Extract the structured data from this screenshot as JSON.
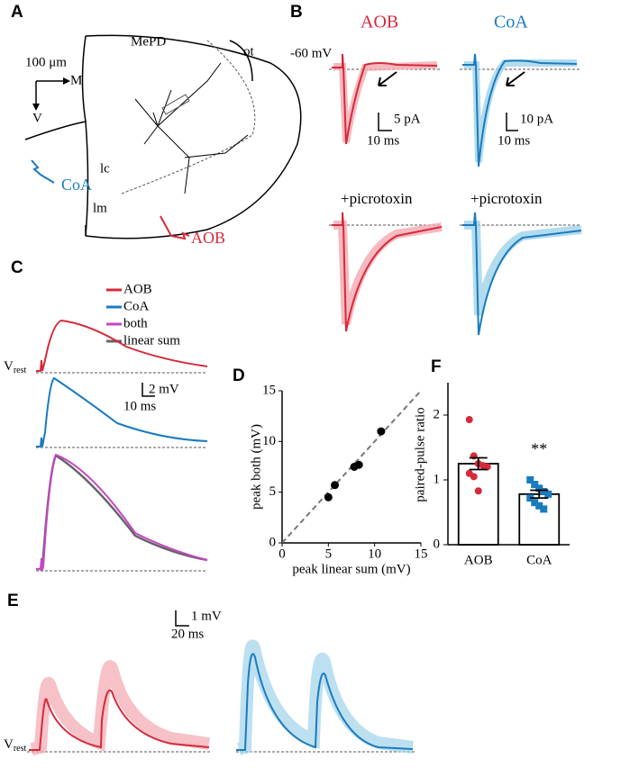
{
  "panels": {
    "A": {
      "label": "A",
      "scale": "100 μm",
      "axis_m": "M",
      "axis_v": "V",
      "region": "MePD",
      "tract": "ot",
      "layer_c": "lc",
      "layer_m": "lm",
      "input_1": "CoA",
      "input_2": "AOB"
    },
    "B": {
      "label": "B",
      "title_1": "AOB",
      "title_2": "CoA",
      "holding": "-60 mV",
      "scale_1_y": "5 pA",
      "scale_1_x": "10 ms",
      "scale_2_y": "10 pA",
      "scale_2_x": "10 ms",
      "drug_1": "+picrotoxin",
      "drug_2": "+picrotoxin"
    },
    "C": {
      "label": "C",
      "legend": [
        {
          "name": "AOB",
          "color": "#d62a3a"
        },
        {
          "name": "CoA",
          "color": "#1a7bbf"
        },
        {
          "name": "both",
          "color": "#c644c6"
        },
        {
          "name": "linear sum",
          "color": "#666666"
        }
      ],
      "vrest": "V",
      "vrest_sub": "rest",
      "scale_y": "2 mV",
      "scale_x": "10 ms"
    },
    "D": {
      "label": "D"
    },
    "E": {
      "label": "E",
      "scale_y": "1 mV",
      "scale_x": "20 ms",
      "vrest": "V",
      "vrest_sub": "rest"
    },
    "F": {
      "label": "F"
    }
  },
  "chart_data": [
    {
      "type": "scatter",
      "x_label": "peak linear sum (mV)",
      "y_label": "peak both (mV)",
      "x": [
        5,
        5.7,
        7.8,
        8.3,
        10.7
      ],
      "y": [
        4.5,
        5.7,
        7.5,
        7.7,
        11
      ],
      "xlim": [
        0,
        15
      ],
      "ylim": [
        0,
        15
      ],
      "xticks": [
        0,
        5,
        10,
        15
      ],
      "yticks": [
        0,
        5,
        10,
        15
      ],
      "color": "#000000",
      "identity_line": true
    },
    {
      "type": "bar",
      "y_label": "paired-pulse ratio",
      "categories": [
        "AOB",
        "CoA"
      ],
      "values": [
        1.25,
        0.78
      ],
      "errors": [
        0.09,
        0.06
      ],
      "points": [
        [
          1.93,
          1.37,
          1.25,
          1.22,
          1.2,
          1.1,
          1.05,
          0.83
        ],
        [
          1.0,
          0.93,
          0.87,
          0.82,
          0.78,
          0.72,
          0.65,
          0.6,
          0.55
        ]
      ],
      "point_colors": [
        "#d62a3a",
        "#1a7bbf"
      ],
      "annotation": "**",
      "ylim": [
        0,
        2.5
      ],
      "yticks": [
        0,
        1,
        2
      ]
    }
  ]
}
